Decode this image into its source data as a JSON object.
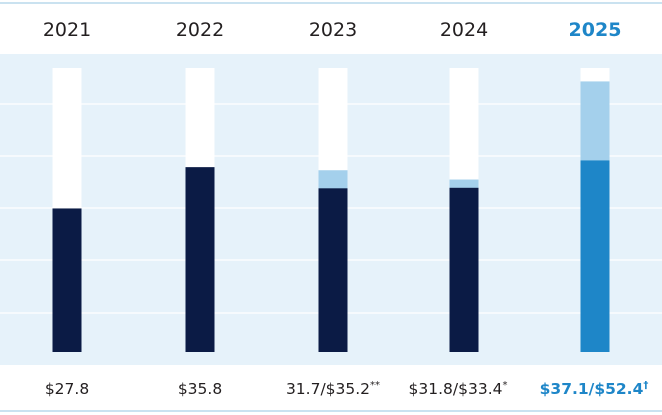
{
  "chart_data": {
    "type": "bar",
    "categories": [
      "2021",
      "2022",
      "2023",
      "2024",
      "2025"
    ],
    "highlight_category": "2025",
    "series": [
      {
        "values": [
          27.8,
          35.8,
          31.7,
          31.8,
          37.1
        ],
        "colors": [
          "#0b1b45",
          "#0b1b45",
          "#0b1b45",
          "#0b1b45",
          "#1e86c8"
        ]
      },
      {
        "values": [
          null,
          null,
          35.2,
          33.4,
          52.4
        ],
        "color": "#a4d0ec"
      }
    ],
    "value_labels": [
      {
        "text": "$27.8"
      },
      {
        "text": "$35.8"
      },
      {
        "text": "31.7/$35.2",
        "mark": "**"
      },
      {
        "text": "$31.8/$33.4",
        "mark": "*"
      },
      {
        "text": "$37.1/$52.4",
        "mark": "†"
      }
    ],
    "ylim": [
      0,
      55
    ],
    "grid": true,
    "colors": {
      "plot_background": "#e6f2fa",
      "bar_track": "#ffffff",
      "gridline": "#ffffff",
      "divider": "#b9d8ec",
      "text": "#231f20",
      "highlight_text": "#1e86c8"
    }
  }
}
